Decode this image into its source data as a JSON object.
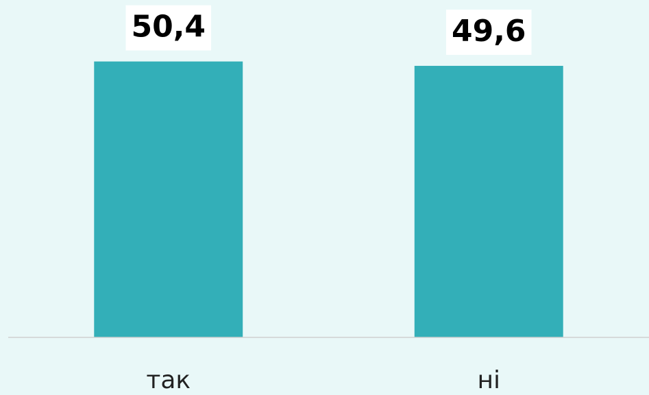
{
  "chart_data": {
    "type": "bar",
    "categories": [
      "так",
      "ні"
    ],
    "values": [
      50.4,
      49.6
    ],
    "value_labels": [
      "50,4",
      "49,6"
    ],
    "color": "#33afb8",
    "ylim": [
      0,
      60
    ]
  }
}
